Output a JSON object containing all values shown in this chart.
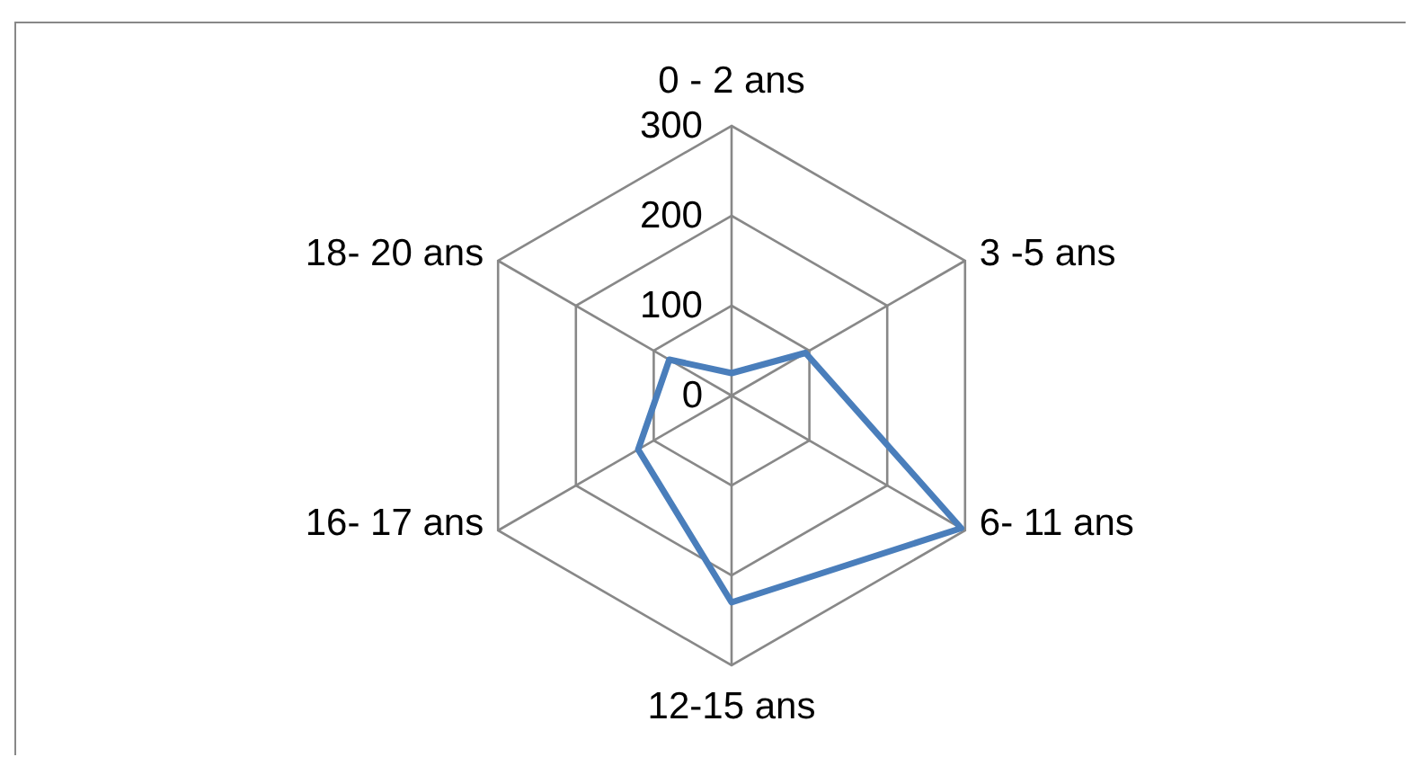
{
  "chart_data": {
    "type": "radar",
    "categories": [
      "0 - 2 ans",
      "3 -5 ans",
      "6- 11 ans",
      "12-15 ans",
      "16- 17 ans",
      "18- 20 ans"
    ],
    "series": [
      {
        "color": "#4a7ebb",
        "values": [
          25,
          95,
          295,
          230,
          120,
          80
        ]
      }
    ],
    "ylim": [
      0,
      300
    ],
    "yticks": [
      0,
      100,
      200,
      300
    ],
    "grid": true,
    "marker": "none"
  }
}
